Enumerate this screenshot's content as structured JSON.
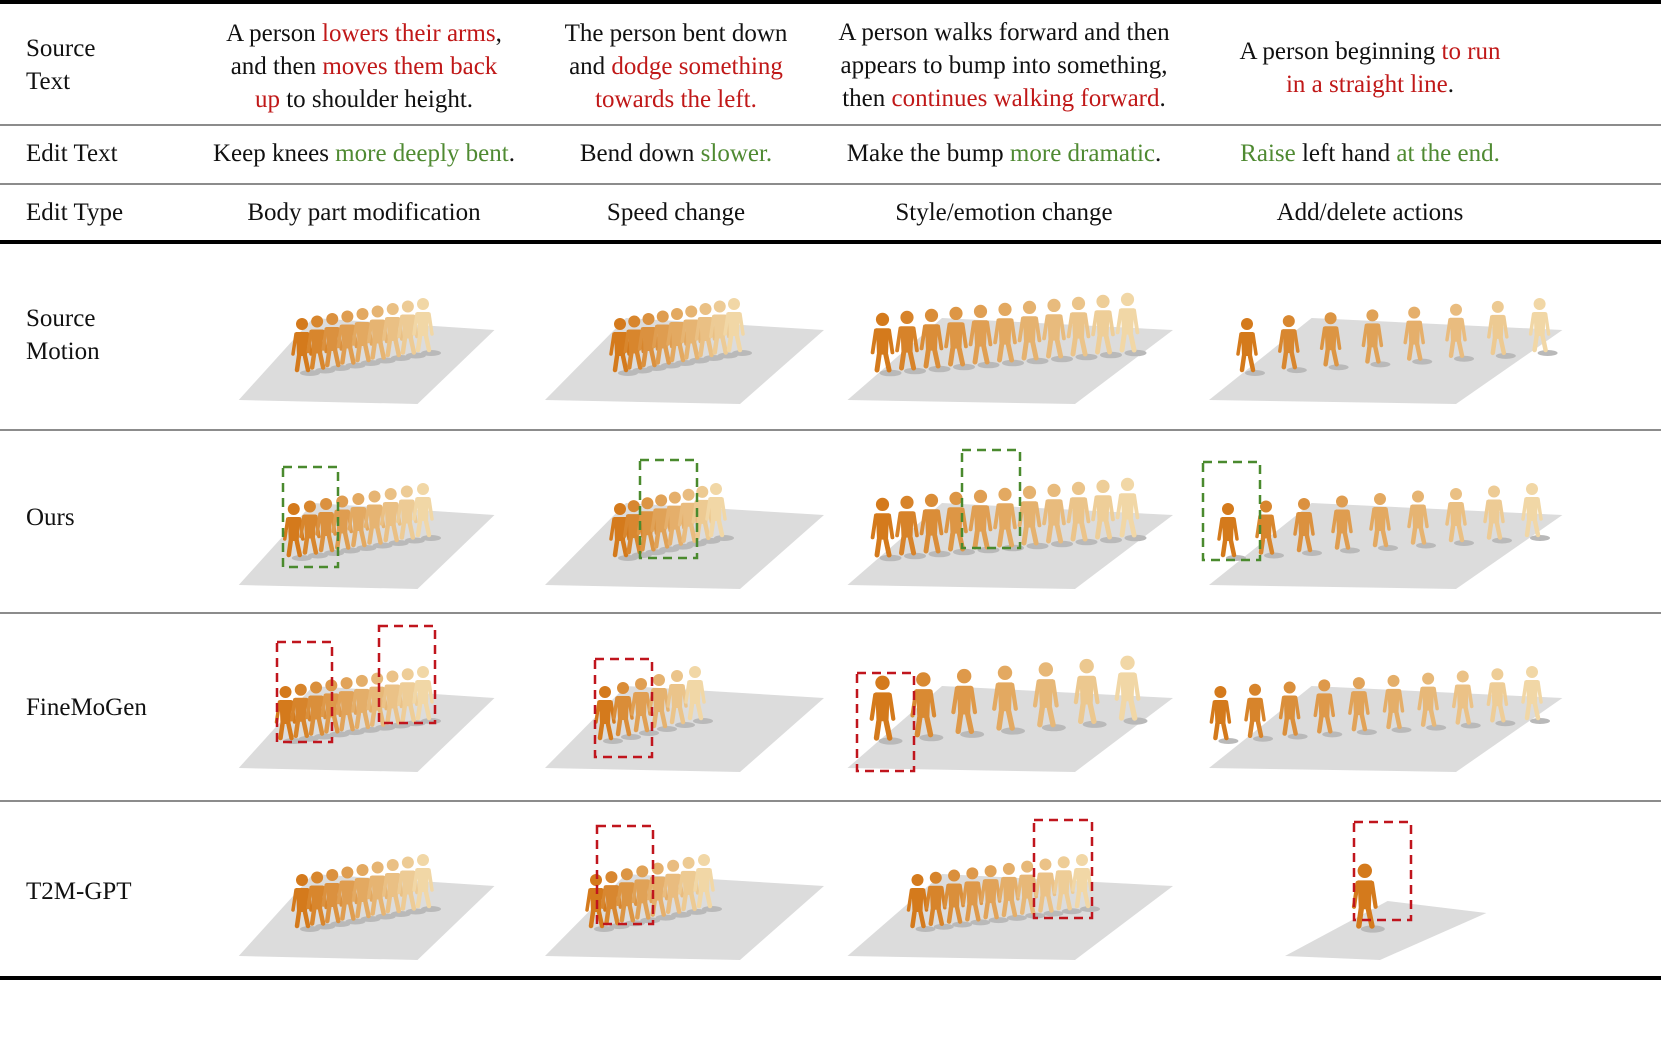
{
  "colors": {
    "highlight_red": "#c01818",
    "highlight_green": "#4f8a32",
    "box_red": "#c0151d",
    "box_green": "#4a8a2e",
    "figure_dark": "#d47a1c",
    "figure_light": "#f1d7a6",
    "floor": "#dcdcdc"
  },
  "header": {
    "source_text_label": "Source\nText",
    "edit_text_label": "Edit Text",
    "edit_type_label": "Edit Type"
  },
  "columns": [
    {
      "source_parts": [
        {
          "t": "A person ",
          "c": ""
        },
        {
          "t": "lowers their arms",
          "c": "red"
        },
        {
          "t": ",\nand then ",
          "c": ""
        },
        {
          "t": "moves them back\nup",
          "c": "red"
        },
        {
          "t": " to shoulder height.",
          "c": ""
        }
      ],
      "edit_parts": [
        {
          "t": "Keep knees ",
          "c": ""
        },
        {
          "t": "more deeply bent",
          "c": "grn"
        },
        {
          "t": ".",
          "c": ""
        }
      ],
      "edit_type": "Body part modification"
    },
    {
      "source_parts": [
        {
          "t": "The person bent down\nand ",
          "c": ""
        },
        {
          "t": "dodge something\ntowards the left.",
          "c": "red"
        }
      ],
      "edit_parts": [
        {
          "t": "Bend down ",
          "c": ""
        },
        {
          "t": "slower.",
          "c": "grn"
        }
      ],
      "edit_type": "Speed change"
    },
    {
      "source_parts": [
        {
          "t": "A person walks forward and then\nappears to bump into something,\nthen ",
          "c": ""
        },
        {
          "t": "continues walking forward",
          "c": "red"
        },
        {
          "t": ".",
          "c": ""
        }
      ],
      "edit_parts": [
        {
          "t": "Make the bump ",
          "c": ""
        },
        {
          "t": "more dramatic",
          "c": "grn"
        },
        {
          "t": ".",
          "c": ""
        }
      ],
      "edit_type": "Style/emotion change"
    },
    {
      "source_parts": [
        {
          "t": "A person beginning ",
          "c": ""
        },
        {
          "t": "to run\nin a straight line",
          "c": "red"
        },
        {
          "t": ".",
          "c": ""
        }
      ],
      "edit_parts": [
        {
          "t": "Raise",
          "c": "grn"
        },
        {
          "t": " left hand ",
          "c": ""
        },
        {
          "t": "at the end.",
          "c": "grn"
        }
      ],
      "edit_type": "Add/delete actions"
    }
  ],
  "rows": [
    {
      "label": "Source\nMotion",
      "boxes": []
    },
    {
      "label": "Ours",
      "boxes": [
        "green",
        "green",
        "green",
        "green"
      ]
    },
    {
      "label": "FineMoGen",
      "boxes": [
        "red",
        "red",
        "red"
      ]
    },
    {
      "label": "T2M-GPT",
      "boxes": [
        "red",
        "red",
        "red"
      ]
    }
  ]
}
